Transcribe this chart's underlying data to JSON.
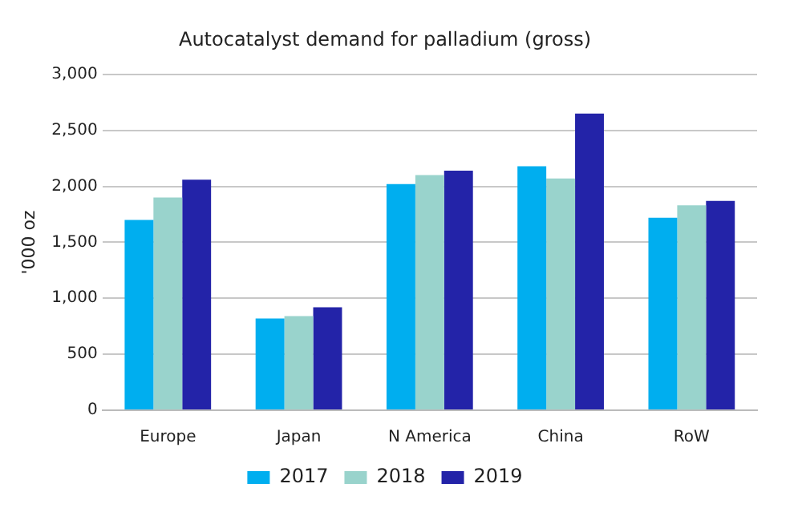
{
  "chart_data": {
    "type": "bar",
    "title": "Autocatalyst demand for palladium (gross)",
    "ylabel": "'000 oz",
    "categories": [
      "Europe",
      "Japan",
      "N America",
      "China",
      "RoW"
    ],
    "series": [
      {
        "name": "2017",
        "color": "#00aeef",
        "values": [
          1700,
          820,
          2020,
          2180,
          1720
        ]
      },
      {
        "name": "2018",
        "color": "#99d3cc",
        "values": [
          1900,
          840,
          2100,
          2070,
          1830
        ]
      },
      {
        "name": "2019",
        "color": "#2323a8",
        "values": [
          2060,
          920,
          2140,
          2650,
          1870
        ]
      }
    ],
    "ylim": [
      0,
      3000
    ],
    "yticks": [
      {
        "value": 0,
        "label": "0"
      },
      {
        "value": 500,
        "label": "500"
      },
      {
        "value": 1000,
        "label": "1,000"
      },
      {
        "value": 1500,
        "label": "1,500"
      },
      {
        "value": 2000,
        "label": "2,000"
      },
      {
        "value": 2500,
        "label": "2,500"
      },
      {
        "value": 3000,
        "label": "3,000"
      }
    ],
    "grid": "y",
    "legend": "bottom"
  }
}
